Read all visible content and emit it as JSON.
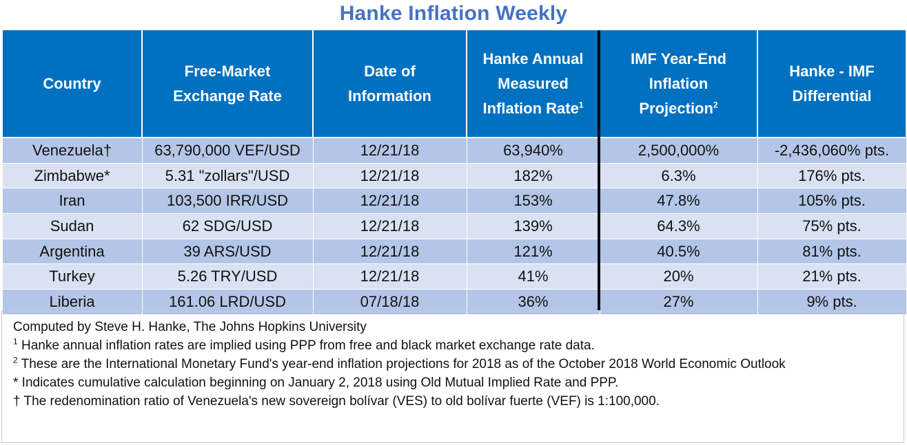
{
  "title": "Hanke Inflation Weekly",
  "table": {
    "headers": [
      {
        "lines": [
          "Country"
        ],
        "sup": ""
      },
      {
        "lines": [
          "Free-Market",
          "Exchange Rate"
        ],
        "sup": ""
      },
      {
        "lines": [
          "Date of",
          "Information"
        ],
        "sup": ""
      },
      {
        "lines": [
          "Hanke Annual",
          "Measured",
          "Inflation Rate"
        ],
        "sup": "1"
      },
      {
        "lines": [
          "IMF Year-End",
          "Inflation",
          "Projection"
        ],
        "sup": "2"
      },
      {
        "lines": [
          "Hanke - IMF",
          "Differential"
        ],
        "sup": ""
      }
    ],
    "rows": [
      {
        "country": "Venezuela†",
        "rate": "63,790,000 VEF/USD",
        "date": "12/21/18",
        "hanke": "63,940%",
        "imf": "2,500,000%",
        "diff": "-2,436,060% pts."
      },
      {
        "country": "Zimbabwe*",
        "rate": "5.31 \"zollars\"/USD",
        "date": "12/21/18",
        "hanke": "182%",
        "imf": "6.3%",
        "diff": "176% pts."
      },
      {
        "country": "Iran",
        "rate": "103,500 IRR/USD",
        "date": "12/21/18",
        "hanke": "153%",
        "imf": "47.8%",
        "diff": "105% pts."
      },
      {
        "country": "Sudan",
        "rate": "62 SDG/USD",
        "date": "12/21/18",
        "hanke": "139%",
        "imf": "64.3%",
        "diff": "75% pts."
      },
      {
        "country": "Argentina",
        "rate": "39 ARS/USD",
        "date": "12/21/18",
        "hanke": "121%",
        "imf": "40.5%",
        "diff": "81% pts."
      },
      {
        "country": "Turkey",
        "rate": "5.26 TRY/USD",
        "date": "12/21/18",
        "hanke": "41%",
        "imf": "20%",
        "diff": "21% pts."
      },
      {
        "country": "Liberia",
        "rate": "161.06 LRD/USD",
        "date": "07/18/18",
        "hanke": "36%",
        "imf": "27%",
        "diff": "9% pts."
      }
    ]
  },
  "notes": {
    "credit": "Computed by Steve H. Hanke, The Johns Hopkins University",
    "note1_mark": "1",
    "note1": " Hanke annual inflation rates are implied using PPP from free and black market exchange rate data.",
    "note2_mark": "2",
    "note2": " These are the International Monetary Fund's year-end inflation projections for 2018 as of the October 2018 World Economic Outlook",
    "note3": "* Indicates cumulative calculation beginning on January 2, 2018 using Old Mutual Implied Rate and PPP.",
    "note4": "† The redenomination ratio of Venezuela's new sovereign bolívar (VES) to old bolívar fuerte (VEF) is 1:100,000."
  },
  "colors": {
    "title": "#4472c4",
    "header_bg": "#0070c0",
    "band_dark": "#b4c6e7",
    "band_light": "#d9e1f2"
  }
}
